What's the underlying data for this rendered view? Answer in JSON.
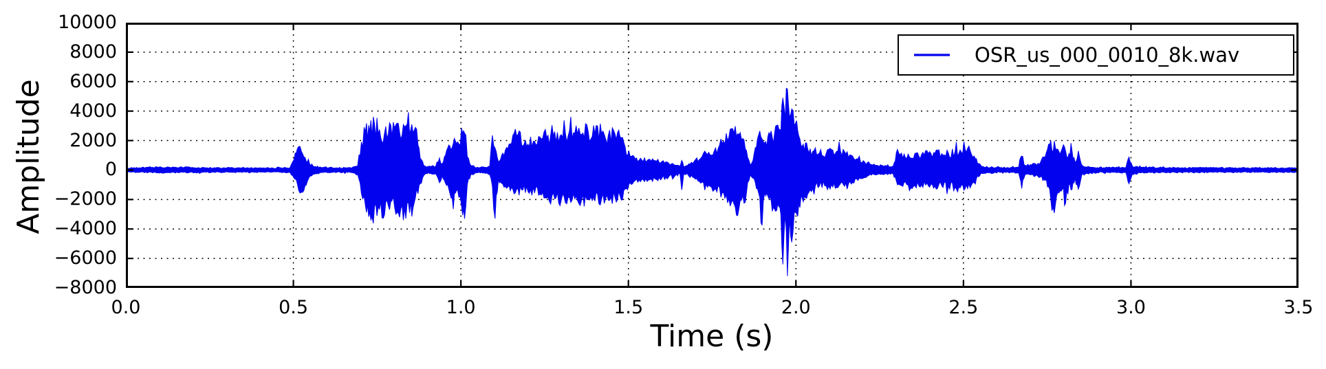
{
  "figure": {
    "background": "#ffffff",
    "axis_color": "#000000",
    "grid_color": "#000000",
    "waveform_color": "#0202ee"
  },
  "legend": {
    "label": "OSR_us_000_0010_8k.wav",
    "position": "upper right"
  },
  "chart_data": {
    "type": "line",
    "title": "",
    "xlabel": "Time (s)",
    "ylabel": "Amplitude",
    "xlim": [
      0.0,
      3.5
    ],
    "ylim": [
      -8000,
      10000
    ],
    "grid": true,
    "grid_style": "dotted",
    "legend_position": "upper right",
    "xticks": [
      0.0,
      0.5,
      1.0,
      1.5,
      2.0,
      2.5,
      3.0,
      3.5
    ],
    "xtick_labels": [
      "0.0",
      "0.5",
      "1.0",
      "1.5",
      "2.0",
      "2.5",
      "3.0",
      "3.5"
    ],
    "yticks": [
      10000,
      8000,
      6000,
      4000,
      2000,
      0,
      -2000,
      -4000,
      -6000,
      -8000
    ],
    "ytick_labels": [
      "10000",
      "8000",
      "6000",
      "4000",
      "2000",
      "0",
      "−2000",
      "−4000",
      "−6000",
      "−8000"
    ],
    "series": [
      {
        "name": "OSR_us_000_0010_8k.wav",
        "color": "#0202ee",
        "description": "speech waveform amplitude envelope; triples of [time_s, max_amplitude, min_amplitude]",
        "envelope": [
          [
            0.0,
            130,
            -130
          ],
          [
            0.04,
            150,
            -150
          ],
          [
            0.08,
            190,
            -190
          ],
          [
            0.12,
            170,
            -170
          ],
          [
            0.16,
            180,
            -180
          ],
          [
            0.2,
            170,
            -170
          ],
          [
            0.24,
            150,
            -150
          ],
          [
            0.28,
            140,
            -140
          ],
          [
            0.32,
            150,
            -150
          ],
          [
            0.36,
            140,
            -140
          ],
          [
            0.4,
            140,
            -140
          ],
          [
            0.44,
            130,
            -130
          ],
          [
            0.49,
            160,
            -160
          ],
          [
            0.502,
            700,
            -550
          ],
          [
            0.512,
            1450,
            -950
          ],
          [
            0.524,
            1250,
            -1500
          ],
          [
            0.535,
            850,
            -1050
          ],
          [
            0.548,
            450,
            -450
          ],
          [
            0.565,
            250,
            -250
          ],
          [
            0.59,
            170,
            -170
          ],
          [
            0.63,
            150,
            -150
          ],
          [
            0.67,
            160,
            -160
          ],
          [
            0.692,
            300,
            -300
          ],
          [
            0.703,
            1900,
            -1600
          ],
          [
            0.715,
            2600,
            -2400
          ],
          [
            0.728,
            2600,
            -2850
          ],
          [
            0.742,
            3150,
            -2500
          ],
          [
            0.757,
            2750,
            -2650
          ],
          [
            0.772,
            2500,
            -3050
          ],
          [
            0.787,
            3200,
            -2700
          ],
          [
            0.802,
            2850,
            -2500
          ],
          [
            0.817,
            2550,
            -3200
          ],
          [
            0.832,
            2950,
            -2600
          ],
          [
            0.847,
            2450,
            -2900
          ],
          [
            0.86,
            2650,
            -2300
          ],
          [
            0.872,
            1700,
            -1600
          ],
          [
            0.882,
            700,
            -900
          ],
          [
            0.893,
            280,
            -280
          ],
          [
            0.91,
            220,
            -220
          ],
          [
            0.925,
            260,
            -260
          ],
          [
            0.936,
            820,
            -860
          ],
          [
            0.944,
            420,
            -420
          ],
          [
            0.954,
            1000,
            -900
          ],
          [
            0.964,
            1700,
            -1300
          ],
          [
            0.974,
            1550,
            -1900
          ],
          [
            0.984,
            1950,
            -1550
          ],
          [
            0.994,
            1750,
            -1850
          ],
          [
            1.002,
            2850,
            -2450
          ],
          [
            1.011,
            2500,
            -3300
          ],
          [
            1.019,
            900,
            -1000
          ],
          [
            1.03,
            280,
            -280
          ],
          [
            1.05,
            190,
            -190
          ],
          [
            1.07,
            180,
            -180
          ],
          [
            1.086,
            240,
            -300
          ],
          [
            1.094,
            2350,
            -1100
          ],
          [
            1.102,
            1500,
            -3300
          ],
          [
            1.112,
            550,
            -650
          ],
          [
            1.125,
            1150,
            -950
          ],
          [
            1.14,
            1450,
            -1150
          ],
          [
            1.155,
            2350,
            -1300
          ],
          [
            1.17,
            2400,
            -1250
          ],
          [
            1.185,
            1600,
            -1350
          ],
          [
            1.2,
            1750,
            -1450
          ],
          [
            1.22,
            1950,
            -1550
          ],
          [
            1.24,
            2100,
            -1700
          ],
          [
            1.26,
            2350,
            -1850
          ],
          [
            1.28,
            2600,
            -1950
          ],
          [
            1.3,
            2400,
            -2000
          ],
          [
            1.32,
            2300,
            -1850
          ],
          [
            1.34,
            2500,
            -1950
          ],
          [
            1.36,
            2400,
            -2050
          ],
          [
            1.38,
            2600,
            -1950
          ],
          [
            1.4,
            2450,
            -2100
          ],
          [
            1.42,
            2500,
            -1950
          ],
          [
            1.44,
            2350,
            -2050
          ],
          [
            1.46,
            2450,
            -1850
          ],
          [
            1.475,
            2250,
            -1750
          ],
          [
            1.49,
            1600,
            -1300
          ],
          [
            1.505,
            950,
            -850
          ],
          [
            1.52,
            750,
            -720
          ],
          [
            1.54,
            680,
            -640
          ],
          [
            1.56,
            720,
            -680
          ],
          [
            1.58,
            640,
            -620
          ],
          [
            1.6,
            580,
            -560
          ],
          [
            1.62,
            480,
            -470
          ],
          [
            1.64,
            330,
            -370
          ],
          [
            1.654,
            250,
            -280
          ],
          [
            1.659,
            650,
            -1350
          ],
          [
            1.665,
            230,
            -230
          ],
          [
            1.68,
            420,
            -400
          ],
          [
            1.7,
            700,
            -620
          ],
          [
            1.72,
            920,
            -820
          ],
          [
            1.74,
            1200,
            -1020
          ],
          [
            1.76,
            1500,
            -1250
          ],
          [
            1.78,
            1800,
            -1550
          ],
          [
            1.8,
            2250,
            -1950
          ],
          [
            1.815,
            2500,
            -2300
          ],
          [
            1.83,
            2400,
            -2600
          ],
          [
            1.845,
            2050,
            -2250
          ],
          [
            1.856,
            850,
            -850
          ],
          [
            1.864,
            320,
            -320
          ],
          [
            1.872,
            650,
            -550
          ],
          [
            1.882,
            1550,
            -1250
          ],
          [
            1.892,
            2650,
            -1850
          ],
          [
            1.899,
            2100,
            -3750
          ],
          [
            1.907,
            1850,
            -1550
          ],
          [
            1.916,
            2250,
            -1750
          ],
          [
            1.926,
            2650,
            -2050
          ],
          [
            1.936,
            2450,
            -2650
          ],
          [
            1.946,
            3050,
            -2250
          ],
          [
            1.955,
            2650,
            -3050
          ],
          [
            1.961,
            4900,
            -6400
          ],
          [
            1.968,
            3500,
            -3000
          ],
          [
            1.9745,
            5500,
            -7200
          ],
          [
            1.981,
            3600,
            -3250
          ],
          [
            1.9875,
            4150,
            -4900
          ],
          [
            1.995,
            3050,
            -2850
          ],
          [
            2.002,
            3350,
            -2950
          ],
          [
            2.012,
            2100,
            -2550
          ],
          [
            2.022,
            1750,
            -2150
          ],
          [
            2.035,
            1450,
            -1650
          ],
          [
            2.05,
            1250,
            -1250
          ],
          [
            2.07,
            1150,
            -1100
          ],
          [
            2.09,
            1100,
            -1050
          ],
          [
            2.11,
            1350,
            -1150
          ],
          [
            2.125,
            1300,
            -1200
          ],
          [
            2.145,
            1250,
            -1100
          ],
          [
            2.165,
            1000,
            -950
          ],
          [
            2.185,
            750,
            -700
          ],
          [
            2.205,
            550,
            -500
          ],
          [
            2.225,
            380,
            -350
          ],
          [
            2.245,
            300,
            -280
          ],
          [
            2.27,
            260,
            -250
          ],
          [
            2.29,
            260,
            -260
          ],
          [
            2.303,
            1400,
            -1000
          ],
          [
            2.315,
            1150,
            -1050
          ],
          [
            2.335,
            1080,
            -1020
          ],
          [
            2.355,
            1120,
            -1060
          ],
          [
            2.375,
            1060,
            -1010
          ],
          [
            2.395,
            1110,
            -1060
          ],
          [
            2.415,
            1160,
            -1110
          ],
          [
            2.435,
            1110,
            -1060
          ],
          [
            2.455,
            1160,
            -1110
          ],
          [
            2.475,
            1260,
            -1160
          ],
          [
            2.49,
            1360,
            -1210
          ],
          [
            2.505,
            1420,
            -1260
          ],
          [
            2.52,
            1320,
            -1210
          ],
          [
            2.532,
            950,
            -850
          ],
          [
            2.542,
            450,
            -400
          ],
          [
            2.555,
            230,
            -230
          ],
          [
            2.58,
            170,
            -170
          ],
          [
            2.61,
            160,
            -160
          ],
          [
            2.64,
            160,
            -160
          ],
          [
            2.665,
            200,
            -200
          ],
          [
            2.674,
            950,
            -1250
          ],
          [
            2.684,
            320,
            -320
          ],
          [
            2.7,
            360,
            -330
          ],
          [
            2.715,
            420,
            -390
          ],
          [
            2.73,
            520,
            -470
          ],
          [
            2.744,
            900,
            -720
          ],
          [
            2.754,
            1750,
            -1120
          ],
          [
            2.764,
            1350,
            -2750
          ],
          [
            2.775,
            1450,
            -2250
          ],
          [
            2.785,
            1250,
            -1550
          ],
          [
            2.795,
            1480,
            -1320
          ],
          [
            2.805,
            1280,
            -2250
          ],
          [
            2.815,
            1120,
            -950
          ],
          [
            2.824,
            1320,
            -1320
          ],
          [
            2.833,
            550,
            -550
          ],
          [
            2.843,
            1300,
            -1300
          ],
          [
            2.853,
            350,
            -350
          ],
          [
            2.87,
            220,
            -220
          ],
          [
            2.9,
            170,
            -170
          ],
          [
            2.93,
            160,
            -160
          ],
          [
            2.96,
            160,
            -160
          ],
          [
            2.985,
            170,
            -170
          ],
          [
            2.994,
            880,
            -930
          ],
          [
            3.004,
            280,
            -280
          ],
          [
            3.03,
            190,
            -190
          ],
          [
            3.06,
            170,
            -170
          ],
          [
            3.1,
            160,
            -160
          ],
          [
            3.15,
            150,
            -150
          ],
          [
            3.2,
            160,
            -160
          ],
          [
            3.25,
            150,
            -150
          ],
          [
            3.3,
            150,
            -150
          ],
          [
            3.35,
            140,
            -140
          ],
          [
            3.4,
            150,
            -150
          ],
          [
            3.45,
            140,
            -140
          ],
          [
            3.5,
            140,
            -140
          ]
        ]
      }
    ]
  }
}
